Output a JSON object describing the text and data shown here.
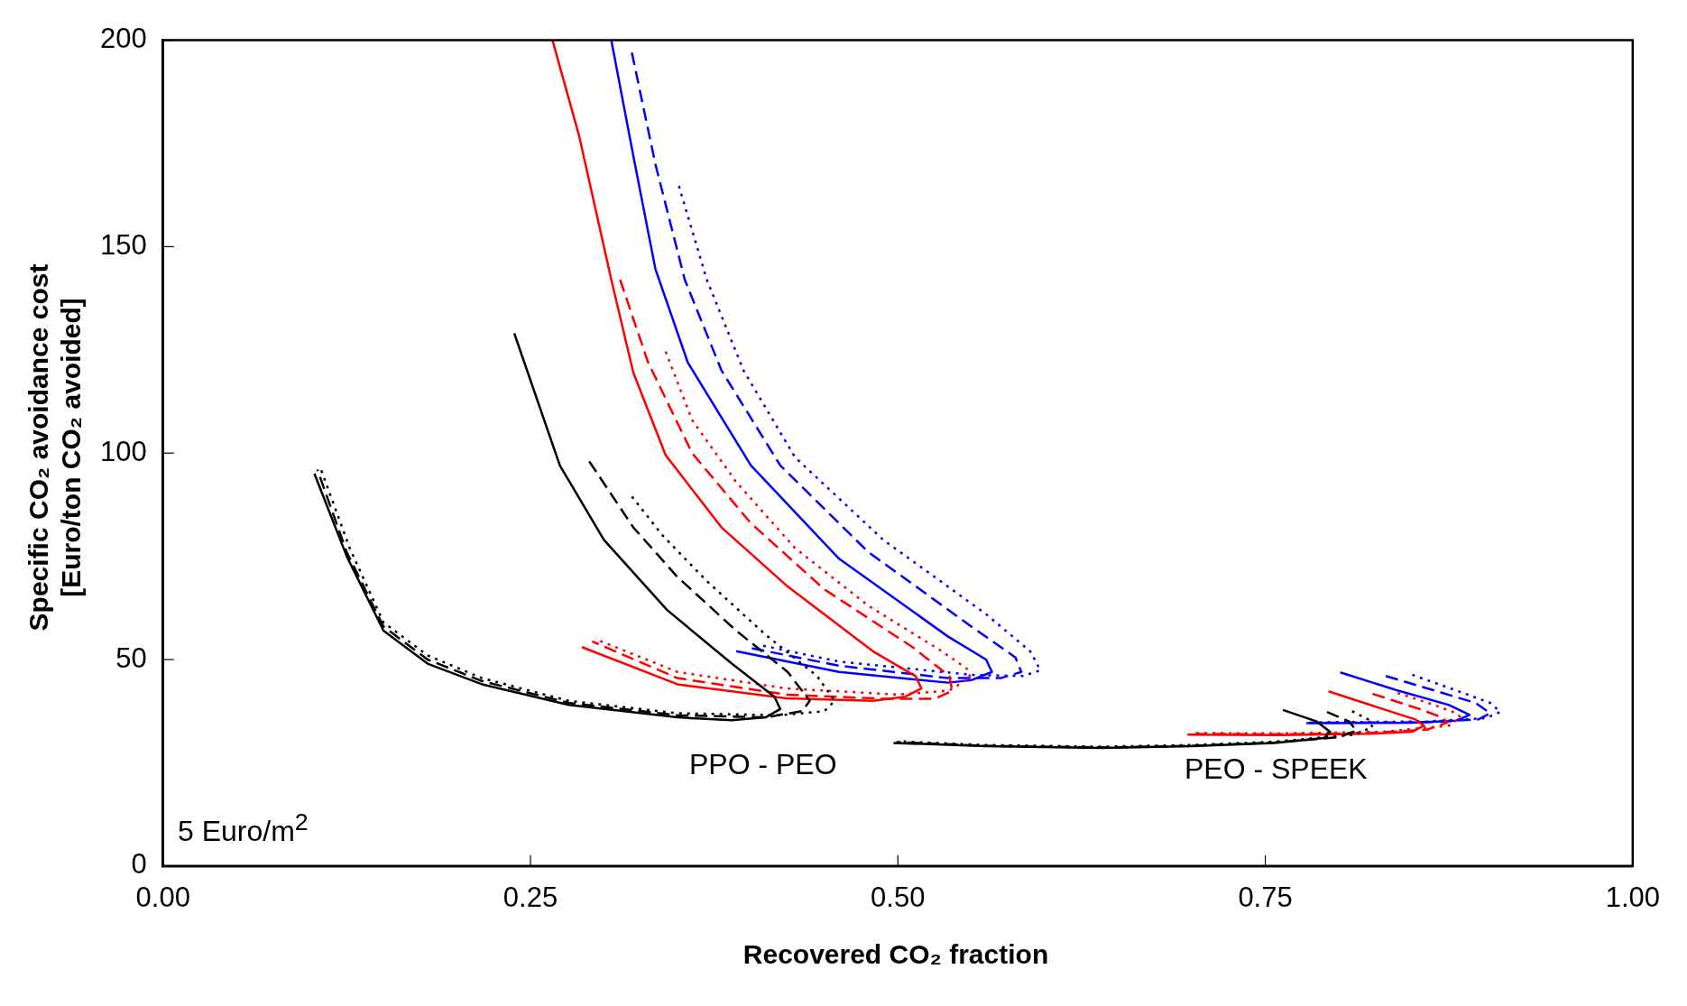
{
  "chart_data": {
    "type": "line",
    "xlabel": "Recovered CO₂ fraction",
    "ylabel": "Specific CO₂ avoidance cost [Euro/ton CO₂ avoided]",
    "xlim": [
      0,
      1
    ],
    "ylim": [
      0,
      200
    ],
    "xticks": [
      {
        "value": 0,
        "label": "0.00"
      },
      {
        "value": 0.25,
        "label": "0.25"
      },
      {
        "value": 0.5,
        "label": "0.50"
      },
      {
        "value": 0.75,
        "label": "0.75"
      },
      {
        "value": 1,
        "label": "1.00"
      }
    ],
    "yticks": [
      0,
      50,
      100,
      150,
      200
    ],
    "grid": false,
    "legend": false,
    "marker": "none",
    "annotations": [
      "PPO - PEO",
      "PEO - SPEEK",
      "5 Euro/m$^{2}$"
    ],
    "series": [
      {
        "color": "#000000",
        "line_style": "solid",
        "x": [
          0.239,
          0.27,
          0.3,
          0.343,
          0.387,
          0.416,
          0.42,
          0.41,
          0.387,
          0.35,
          0.276,
          0.217,
          0.18,
          0.15,
          0.125,
          0.103
        ],
        "values": [
          129,
          97,
          79,
          62,
          49,
          41,
          38,
          36,
          35.3,
          36,
          39,
          44,
          49,
          57,
          75,
          95
        ]
      },
      {
        "color": "#000000",
        "line_style": "dashed",
        "x": [
          0.29,
          0.32,
          0.35,
          0.39,
          0.425,
          0.44,
          0.435,
          0.41,
          0.35,
          0.276,
          0.217,
          0.18,
          0.15,
          0.125,
          0.105
        ],
        "values": [
          98,
          82,
          70,
          57,
          47,
          40,
          37.5,
          36,
          36.5,
          39.5,
          44.8,
          50,
          58,
          76,
          96
        ]
      },
      {
        "color": "#000000",
        "line_style": "dotted",
        "x": [
          0.319,
          0.34,
          0.37,
          0.41,
          0.445,
          0.457,
          0.45,
          0.42,
          0.35,
          0.276,
          0.217,
          0.18,
          0.15,
          0.127,
          0.107
        ],
        "values": [
          89.5,
          80,
          69,
          56,
          46,
          40,
          37.5,
          36.5,
          37,
          40,
          45.5,
          51,
          59,
          77,
          96.5
        ]
      },
      {
        "color": "#ff0000",
        "line_style": "solid",
        "x": [
          0.265,
          0.283,
          0.305,
          0.32,
          0.342,
          0.38,
          0.424,
          0.483,
          0.512,
          0.516,
          0.505,
          0.483,
          0.424,
          0.35,
          0.285
        ],
        "values": [
          200,
          177,
          142,
          119.5,
          99.5,
          82,
          68,
          52,
          46,
          43,
          41,
          40,
          40.6,
          44,
          53
        ]
      },
      {
        "color": "#ff0000",
        "line_style": "dashed",
        "x": [
          0.311,
          0.33,
          0.36,
          0.4,
          0.45,
          0.51,
          0.535,
          0.537,
          0.525,
          0.49,
          0.424,
          0.35,
          0.292
        ],
        "values": [
          142,
          122,
          100,
          83,
          67,
          53,
          46,
          42.4,
          40.5,
          40.5,
          41.5,
          45.5,
          54.4
        ]
      },
      {
        "color": "#ff0000",
        "line_style": "dotted",
        "x": [
          0.342,
          0.36,
          0.39,
          0.43,
          0.48,
          0.53,
          0.548,
          0.549,
          0.535,
          0.5,
          0.424,
          0.35,
          0.294
        ],
        "values": [
          124.6,
          108,
          93,
          77,
          63,
          52,
          47.5,
          45.6,
          42.5,
          41.5,
          43,
          47,
          55
        ]
      },
      {
        "color": "#0000ff",
        "line_style": "solid",
        "x": [
          0.305,
          0.32,
          0.335,
          0.357,
          0.4,
          0.46,
          0.534,
          0.56,
          0.564,
          0.55,
          0.534,
          0.46,
          0.39
        ],
        "values": [
          200,
          172,
          144.6,
          122,
          97,
          74.4,
          55.6,
          50,
          47,
          45,
          44.4,
          47,
          52
        ]
      },
      {
        "color": "#0000ff",
        "line_style": "dashed",
        "x": [
          0.319,
          0.335,
          0.355,
          0.38,
          0.42,
          0.48,
          0.55,
          0.58,
          0.584,
          0.57,
          0.534,
          0.46,
          0.397
        ],
        "values": [
          197,
          170,
          142,
          120,
          97,
          76,
          58,
          50.5,
          47,
          45.5,
          45.5,
          48.5,
          53
        ]
      },
      {
        "color": "#0000ff",
        "line_style": "dotted",
        "x": [
          0.351,
          0.37,
          0.395,
          0.43,
          0.49,
          0.56,
          0.59,
          0.597,
          0.585,
          0.55,
          0.46,
          0.405
        ],
        "values": [
          164.7,
          142,
          120,
          99,
          79,
          61,
          52,
          47.4,
          46,
          46.3,
          49.5,
          53.6
        ]
      },
      {
        "color": "#000000",
        "line_style": "solid",
        "x": [
          0.762,
          0.785,
          0.794,
          0.79,
          0.756,
          0.7,
          0.638,
          0.56,
          0.497
        ],
        "values": [
          37.8,
          35,
          32.5,
          31,
          29.8,
          29,
          28.6,
          29,
          29.8
        ]
      },
      {
        "color": "#000000",
        "line_style": "dashed",
        "x": [
          0.792,
          0.807,
          0.812,
          0.8,
          0.756,
          0.7,
          0.638,
          0.56,
          0.499
        ],
        "values": [
          37.3,
          35,
          32.8,
          31.2,
          29.9,
          29.1,
          28.7,
          29.1,
          30
        ]
      },
      {
        "color": "#000000",
        "line_style": "dotted",
        "x": [
          0.809,
          0.82,
          0.823,
          0.81,
          0.756,
          0.7,
          0.638,
          0.56,
          0.5
        ],
        "values": [
          37.5,
          35.5,
          33.6,
          31.8,
          30.1,
          29.3,
          28.9,
          29.3,
          30.2
        ]
      },
      {
        "color": "#ff0000",
        "line_style": "solid",
        "x": [
          0.793,
          0.83,
          0.852,
          0.858,
          0.85,
          0.82,
          0.76,
          0.697
        ],
        "values": [
          42.3,
          38,
          35.5,
          34,
          32.5,
          32,
          31.7,
          31.8
        ]
      },
      {
        "color": "#ff0000",
        "line_style": "dashed",
        "x": [
          0.823,
          0.855,
          0.87,
          0.874,
          0.86,
          0.82,
          0.76,
          0.7
        ],
        "values": [
          41.7,
          38,
          36,
          34.8,
          33,
          32.2,
          31.9,
          32
        ]
      },
      {
        "color": "#ff0000",
        "line_style": "dotted",
        "x": [
          0.84,
          0.865,
          0.88,
          0.883,
          0.875,
          0.83,
          0.76,
          0.7
        ],
        "values": [
          41.9,
          39,
          37,
          36,
          34,
          32.5,
          32.1,
          32.2
        ]
      },
      {
        "color": "#0000ff",
        "line_style": "solid",
        "x": [
          0.801,
          0.84,
          0.875,
          0.889,
          0.88,
          0.85,
          0.778
        ],
        "values": [
          46.9,
          42.5,
          39,
          36.6,
          35.2,
          34.7,
          34.6
        ]
      },
      {
        "color": "#0000ff",
        "line_style": "dashed",
        "x": [
          0.832,
          0.865,
          0.893,
          0.903,
          0.895,
          0.86,
          0.78
        ],
        "values": [
          46,
          42.5,
          39.5,
          37,
          35.5,
          34.8,
          34.7
        ]
      },
      {
        "color": "#0000ff",
        "line_style": "dotted",
        "x": [
          0.85,
          0.88,
          0.903,
          0.91,
          0.9,
          0.86,
          0.785
        ],
        "values": [
          46.3,
          42.5,
          39.5,
          37.3,
          35.8,
          35,
          34.8
        ]
      }
    ]
  }
}
